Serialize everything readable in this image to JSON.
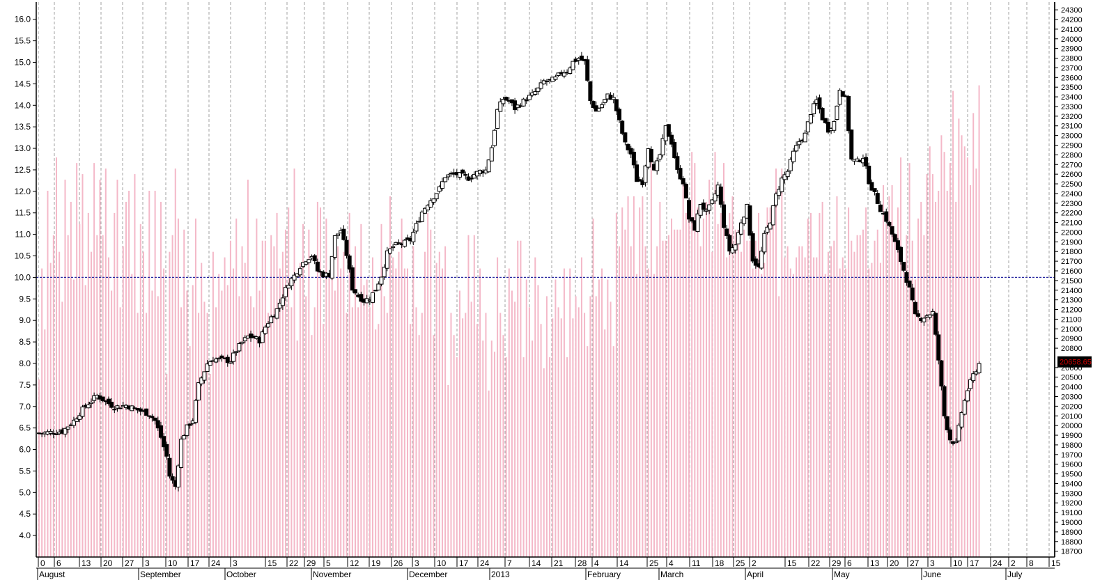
{
  "chart_data": {
    "type": "candlestick",
    "title": "",
    "xlabel": "",
    "ylabel": "",
    "grid": {
      "vertical": true,
      "horizontal": false
    },
    "left_axis": {
      "range": [
        3.5,
        16.4
      ],
      "ticks": [
        "4.0",
        "4.5",
        "5.0",
        "5.5",
        "6.0",
        "6.5",
        "7.0",
        "7.5",
        "8.0",
        "8.5",
        "9.0",
        "9.5",
        "10.0",
        "10.5",
        "11.0",
        "11.5",
        "12.0",
        "12.5",
        "13.0",
        "13.5",
        "14.0",
        "14.5",
        "15.0",
        "15.5",
        "16.0"
      ]
    },
    "right_axis": {
      "range": [
        18640,
        24380
      ],
      "ticks": [
        "18700",
        "18800",
        "18900",
        "19000",
        "19100",
        "19200",
        "19300",
        "19400",
        "19500",
        "19600",
        "19700",
        "19800",
        "19900",
        "20000",
        "20100",
        "20200",
        "20300",
        "20400",
        "20500",
        "20600",
        "20800",
        "20900",
        "21000",
        "21100",
        "21200",
        "21300",
        "21400",
        "21500",
        "21600",
        "21700",
        "21800",
        "21900",
        "22000",
        "22100",
        "22200",
        "22300",
        "22400",
        "22500",
        "22600",
        "22700",
        "22800",
        "22900",
        "23000",
        "23100",
        "23200",
        "23300",
        "23400",
        "23500",
        "23600",
        "23700",
        "23800",
        "23900",
        "24000",
        "24100",
        "24200",
        "24300"
      ]
    },
    "reference_line": {
      "left_value": 10.0,
      "color": "#2a2aa0"
    },
    "last_price": {
      "label": "20658.65",
      "value": 20658.65,
      "color": "#cc0000"
    },
    "x_day_ticks": [
      "0",
      "6",
      "13",
      "20",
      "27",
      "3",
      "10",
      "17",
      "24",
      "3",
      "15",
      "22",
      "29",
      "5",
      "12",
      "19",
      "26",
      "3",
      "10",
      "17",
      "24",
      "7",
      "14",
      "21",
      "28",
      "4",
      "14",
      "25",
      "4",
      "11",
      "18",
      "25",
      "2",
      "15",
      "22",
      "29",
      "6",
      "13",
      "20",
      "27",
      "3",
      "10",
      "17",
      "24",
      "2",
      "8",
      "15"
    ],
    "x_months": [
      "August",
      "September",
      "October",
      "November",
      "December",
      "2013",
      "February",
      "March",
      "April",
      "May",
      "June",
      "July"
    ],
    "price_path": [
      [
        0,
        19920
      ],
      [
        8,
        19940
      ],
      [
        12,
        20050
      ],
      [
        14,
        20130
      ],
      [
        16,
        20200
      ],
      [
        20,
        20310
      ],
      [
        23,
        20250
      ],
      [
        26,
        20190
      ],
      [
        30,
        20210
      ],
      [
        35,
        20150
      ],
      [
        38,
        20120
      ],
      [
        40,
        20050
      ],
      [
        42,
        19880
      ],
      [
        44,
        19680
      ],
      [
        45,
        19480
      ],
      [
        47,
        19370
      ],
      [
        49,
        19850
      ],
      [
        51,
        19980
      ],
      [
        53,
        20060
      ],
      [
        55,
        20420
      ],
      [
        58,
        20640
      ],
      [
        60,
        20690
      ],
      [
        63,
        20680
      ],
      [
        66,
        20670
      ],
      [
        68,
        20780
      ],
      [
        70,
        20860
      ],
      [
        72,
        20920
      ],
      [
        74,
        20910
      ],
      [
        76,
        20880
      ],
      [
        78,
        21020
      ],
      [
        80,
        21120
      ],
      [
        82,
        21200
      ],
      [
        84,
        21340
      ],
      [
        86,
        21480
      ],
      [
        88,
        21550
      ],
      [
        90,
        21650
      ],
      [
        92,
        21720
      ],
      [
        94,
        21760
      ],
      [
        96,
        21600
      ],
      [
        98,
        21560
      ],
      [
        100,
        21560
      ],
      [
        102,
        21950
      ],
      [
        104,
        22020
      ],
      [
        106,
        21770
      ],
      [
        108,
        21420
      ],
      [
        110,
        21340
      ],
      [
        112,
        21290
      ],
      [
        114,
        21320
      ],
      [
        116,
        21410
      ],
      [
        118,
        21550
      ],
      [
        120,
        21780
      ],
      [
        122,
        21850
      ],
      [
        124,
        21880
      ],
      [
        126,
        21890
      ],
      [
        128,
        21920
      ],
      [
        130,
        22070
      ],
      [
        132,
        22210
      ],
      [
        134,
        22300
      ],
      [
        136,
        22370
      ],
      [
        138,
        22450
      ],
      [
        140,
        22580
      ],
      [
        142,
        22590
      ],
      [
        144,
        22600
      ],
      [
        146,
        22580
      ],
      [
        148,
        22560
      ],
      [
        150,
        22600
      ],
      [
        152,
        22630
      ],
      [
        154,
        22640
      ],
      [
        156,
        22880
      ],
      [
        158,
        23260
      ],
      [
        160,
        23380
      ],
      [
        162,
        23360
      ],
      [
        164,
        23280
      ],
      [
        166,
        23330
      ],
      [
        168,
        23380
      ],
      [
        170,
        23420
      ],
      [
        172,
        23480
      ],
      [
        174,
        23560
      ],
      [
        176,
        23560
      ],
      [
        178,
        23590
      ],
      [
        180,
        23650
      ],
      [
        182,
        23670
      ],
      [
        184,
        23760
      ],
      [
        186,
        23800
      ],
      [
        188,
        23760
      ],
      [
        190,
        23360
      ],
      [
        192,
        23250
      ],
      [
        194,
        23320
      ],
      [
        196,
        23410
      ],
      [
        198,
        23380
      ],
      [
        200,
        23140
      ],
      [
        202,
        22910
      ],
      [
        204,
        22810
      ],
      [
        206,
        22540
      ],
      [
        208,
        22520
      ],
      [
        210,
        22890
      ],
      [
        212,
        22620
      ],
      [
        214,
        22800
      ],
      [
        216,
        23080
      ],
      [
        218,
        22930
      ],
      [
        220,
        22630
      ],
      [
        222,
        22520
      ],
      [
        224,
        22140
      ],
      [
        226,
        22040
      ],
      [
        228,
        22300
      ],
      [
        230,
        22200
      ],
      [
        232,
        22310
      ],
      [
        234,
        22480
      ],
      [
        236,
        22070
      ],
      [
        238,
        21810
      ],
      [
        240,
        21870
      ],
      [
        242,
        22110
      ],
      [
        244,
        22260
      ],
      [
        246,
        21720
      ],
      [
        248,
        21630
      ],
      [
        250,
        21960
      ],
      [
        252,
        22120
      ],
      [
        254,
        22380
      ],
      [
        256,
        22550
      ],
      [
        258,
        22630
      ],
      [
        260,
        22820
      ],
      [
        262,
        22940
      ],
      [
        264,
        23010
      ],
      [
        266,
        23240
      ],
      [
        268,
        23360
      ],
      [
        270,
        23180
      ],
      [
        272,
        23060
      ],
      [
        274,
        23140
      ],
      [
        276,
        23490
      ],
      [
        278,
        23380
      ],
      [
        280,
        22750
      ],
      [
        282,
        22730
      ],
      [
        284,
        22780
      ],
      [
        286,
        22530
      ],
      [
        288,
        22390
      ],
      [
        290,
        22240
      ],
      [
        292,
        22130
      ],
      [
        294,
        21980
      ],
      [
        296,
        21800
      ],
      [
        298,
        21610
      ],
      [
        300,
        21410
      ],
      [
        302,
        21130
      ],
      [
        304,
        21110
      ],
      [
        306,
        21140
      ],
      [
        308,
        21170
      ],
      [
        310,
        20680
      ],
      [
        312,
        20100
      ],
      [
        314,
        19860
      ],
      [
        316,
        19810
      ],
      [
        318,
        20140
      ],
      [
        320,
        20370
      ],
      [
        322,
        20520
      ],
      [
        324,
        20640
      ],
      [
        325,
        20658.65
      ]
    ],
    "volume_series": [
      "0.32",
      "0.52",
      "0.41",
      "0.66",
      "0.53",
      "0.58",
      "0.72",
      "0.55",
      "0.46",
      "0.68",
      "0.58",
      "0.64",
      "0.50",
      "0.71",
      "0.60",
      "0.69",
      "0.49",
      "0.62",
      "0.55",
      "0.71",
      "0.58",
      "0.68",
      "0.58",
      "0.70",
      "0.54",
      "0.48",
      "0.62",
      "0.68",
      "0.45",
      "0.56",
      "0.64",
      "0.66",
      "0.51",
      "0.69",
      "0.44",
      "0.60",
      "0.55",
      "0.44",
      "0.66",
      "0.48",
      "0.66",
      "0.47",
      "0.64",
      "0.52",
      "0.33",
      "0.55",
      "0.58",
      "0.70",
      "0.61",
      "0.45",
      "0.59",
      "0.48",
      "0.38",
      "0.49",
      "0.61",
      "0.44",
      "0.53",
      "0.46",
      "0.44",
      "0.33",
      "0.55",
      "0.45",
      "0.51",
      "0.48",
      "0.54",
      "0.49",
      "0.57",
      "0.52",
      "0.61",
      "0.47",
      "0.56",
      "0.53",
      "0.68",
      "0.47",
      "0.45",
      "0.61",
      "0.48",
      "0.57",
      "0.57",
      "0.44",
      "0.58",
      "0.56",
      "0.62",
      "0.52",
      "0.55",
      "0.59",
      "0.63",
      "0.45",
      "0.70",
      "0.39",
      "0.53",
      "0.60",
      "0.47",
      "0.59",
      "0.40",
      "0.45",
      "0.64",
      "0.63",
      "0.42",
      "0.61",
      "0.51",
      "0.54",
      "0.48",
      "0.56",
      "0.52",
      "0.55",
      "0.44",
      "0.62",
      "0.45",
      "0.56",
      "0.45",
      "0.60",
      "0.49",
      "0.50",
      "0.45",
      "0.54",
      "0.41",
      "0.42",
      "0.60",
      "0.47",
      "0.44",
      "0.65",
      "0.54",
      "0.52",
      "0.55",
      "0.61",
      "0.52",
      "0.52",
      "0.42",
      "0.56",
      "0.45",
      "0.40",
      "0.44",
      "0.55",
      "0.62",
      "0.59",
      "0.40",
      "0.53",
      "0.55",
      "0.52",
      "0.56",
      "0.31",
      "0.44",
      "0.40",
      "0.36",
      "0.48",
      "0.43",
      "0.44",
      "0.58",
      "0.46",
      "0.58",
      "0.42",
      "0.52",
      "0.39",
      "0.44",
      "0.30",
      "0.39",
      "0.37",
      "0.54",
      "0.44",
      "0.40",
      "0.36",
      "0.52",
      "0.48",
      "0.46",
      "0.57",
      "0.57",
      "0.36",
      "0.50",
      "0.45",
      "0.39",
      "0.54",
      "0.49",
      "0.42",
      "0.34",
      "0.47",
      "0.36",
      "0.43",
      "0.50",
      "0.45",
      "0.43",
      "0.52",
      "0.36",
      "0.52",
      "0.43",
      "0.47",
      "0.45",
      "0.54",
      "0.44",
      "0.38",
      "0.47",
      "0.61",
      "0.47",
      "0.50",
      "0.52",
      "0.41",
      "0.50",
      "0.46",
      "0.38",
      "0.62",
      "0.56",
      "0.63",
      "0.59",
      "0.65",
      "0.56",
      "0.65",
      "0.51",
      "0.63",
      "0.65",
      "0.56",
      "0.52",
      "0.73",
      "0.51",
      "0.56",
      "0.64",
      "0.57",
      "0.57",
      "0.58",
      "0.61",
      "0.59",
      "0.59",
      "0.59",
      "0.68",
      "0.62",
      "0.62",
      "0.73",
      "0.71",
      "0.63",
      "0.56",
      "0.61",
      "0.64",
      "0.68",
      "0.55",
      "0.73",
      "0.60",
      "0.62",
      "0.71",
      "0.54",
      "0.62",
      "0.65",
      "0.59",
      "0.59",
      "0.55",
      "0.59",
      "0.57",
      "0.57",
      "0.52",
      "0.57",
      "0.62",
      "0.51",
      "0.53",
      "0.63",
      "0.63",
      "0.60",
      "0.70",
      "0.47",
      "0.70",
      "0.54",
      "0.56",
      "0.52",
      "0.51",
      "0.54",
      "0.56",
      "0.56",
      "0.54",
      "0.61",
      "0.62",
      "0.54",
      "0.54",
      "0.62",
      "0.64",
      "0.51",
      "0.55",
      "0.56",
      "0.57",
      "0.65",
      "0.52",
      "0.54",
      "0.52",
      "0.63",
      "0.57",
      "0.55",
      "0.58",
      "0.58",
      "0.59",
      "0.63",
      "0.52",
      "0.53",
      "0.57",
      "0.59",
      "0.53",
      "0.67",
      "0.60",
      "0.65",
      "0.67",
      "0.58",
      "0.63",
      "0.72",
      "0.53",
      "0.58",
      "0.71",
      "0.57",
      "0.50",
      "0.61",
      "0.64",
      "0.58",
      "0.69",
      "0.74",
      "0.69",
      "0.64",
      "0.66",
      "0.76",
      "0.73",
      "0.66",
      "0.71",
      "0.84",
      "0.64",
      "0.79",
      "0.76",
      "0.74",
      "0.72",
      "0.67",
      "0.80",
      "0.70",
      "0.85"
    ]
  }
}
